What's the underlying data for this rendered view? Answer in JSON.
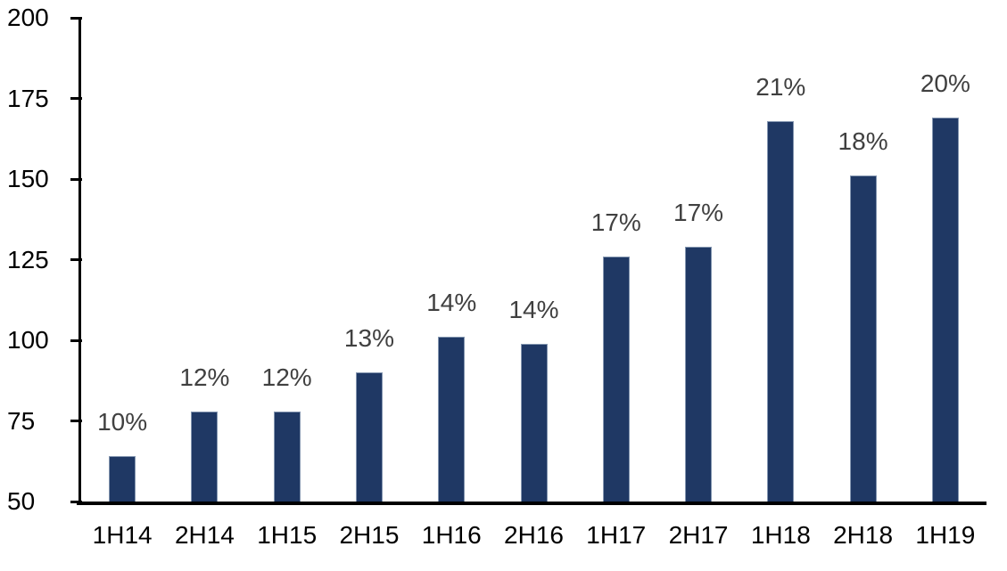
{
  "chart_data": {
    "type": "bar",
    "title": "",
    "categories": [
      "1H14",
      "2H14",
      "1H15",
      "2H15",
      "1H16",
      "2H16",
      "1H17",
      "2H17",
      "1H18",
      "2H18",
      "1H19"
    ],
    "values": [
      64,
      78,
      78,
      90,
      101,
      99,
      126,
      129,
      168,
      151,
      169
    ],
    "bar_labels": [
      "10%",
      "12%",
      "12%",
      "13%",
      "14%",
      "14%",
      "17%",
      "17%",
      "21%",
      "18%",
      "20%"
    ],
    "ylim": [
      50,
      200
    ],
    "yticks": [
      50,
      75,
      100,
      125,
      150,
      175,
      200
    ],
    "grid": false,
    "legend": "none",
    "colors": {
      "bar_fill": "#1F3864",
      "bar_border": "#8496B0",
      "data_label": "#404040",
      "axis": "#000000",
      "background": "#FFFFFF"
    }
  }
}
